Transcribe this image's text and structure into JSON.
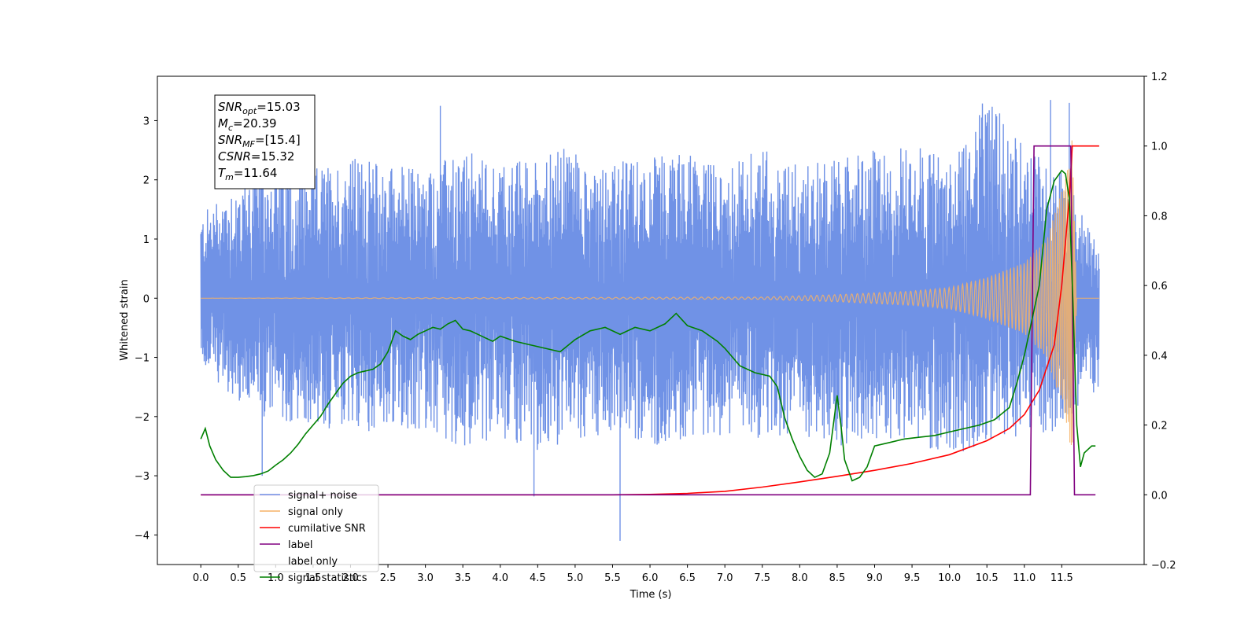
{
  "chart_data": {
    "type": "line",
    "xlabel": "Time (s)",
    "ylabel": "Whitened strain",
    "xlim": [
      -0.58,
      12.6
    ],
    "ylim_left": [
      -4.5,
      3.75
    ],
    "ylim_right": [
      -0.2,
      1.2
    ],
    "x_ticks": [
      "0.0",
      "0.5",
      "1.0",
      "1.5",
      "2.0",
      "2.5",
      "3.0",
      "3.5",
      "4.0",
      "4.5",
      "5.0",
      "5.5",
      "6.0",
      "6.5",
      "7.0",
      "7.5",
      "8.0",
      "8.5",
      "9.0",
      "9.5",
      "10.0",
      "10.5",
      "11.0",
      "11.5"
    ],
    "y_ticks_left": [
      "3",
      "2",
      "1",
      "0",
      "−1",
      "−2",
      "−3",
      "−4"
    ],
    "y_ticks_right": [
      "1.2",
      "1.0",
      "0.8",
      "0.6",
      "0.4",
      "0.2",
      "0.0",
      "−0.2"
    ],
    "grid": false,
    "legend_position": "lower-left",
    "annotation": [
      {
        "base": "SNR",
        "sub": "opt",
        "value": "=15.03"
      },
      {
        "base": "M",
        "sub": "c",
        "value": "=20.39"
      },
      {
        "base": "SNR",
        "sub": "MF",
        "value": "=[15.4]"
      },
      {
        "base": "CSNR",
        "sub": "",
        "value": "=15.32"
      },
      {
        "base": "T",
        "sub": "m",
        "value": "=11.64"
      }
    ],
    "series": [
      {
        "name": "signal+ noise",
        "axis": "left",
        "color": "#7092e6",
        "x_range": [
          0.0,
          12.0
        ],
        "envelope_upper": [
          1.4,
          2.1,
          2.3,
          2.2,
          2.4,
          2.3,
          2.2,
          2.5,
          2.3,
          2.4,
          2.6,
          2.3,
          2.4,
          2.5,
          2.2,
          2.6,
          2.3,
          2.4,
          2.5,
          2.6,
          2.5,
          3.4,
          2.6,
          2.2,
          0.9
        ],
        "envelope_lower": [
          -1.1,
          -1.8,
          -2.1,
          -2.2,
          -2.3,
          -2.2,
          -2.3,
          -2.5,
          -2.4,
          -2.6,
          -2.4,
          -2.3,
          -2.5,
          -2.4,
          -2.3,
          -2.4,
          -2.3,
          -2.5,
          -2.4,
          -2.5,
          -2.6,
          -2.6,
          -2.4,
          -2.2,
          -1.5
        ],
        "extreme_points": [
          [
            3.2,
            3.25
          ],
          [
            4.45,
            -3.35
          ],
          [
            5.6,
            -4.1
          ],
          [
            0.82,
            -3.0
          ],
          [
            11.35,
            3.35
          ],
          [
            11.6,
            3.3
          ]
        ]
      },
      {
        "name": "signal only",
        "axis": "left",
        "color": "#f5b266",
        "x_range": [
          0.0,
          12.0
        ],
        "envelope": [
          [
            7.5,
            0.02
          ],
          [
            8.5,
            0.06
          ],
          [
            9.5,
            0.12
          ],
          [
            10.0,
            0.18
          ],
          [
            10.5,
            0.35
          ],
          [
            11.0,
            0.6
          ],
          [
            11.3,
            1.0
          ],
          [
            11.55,
            2.0
          ],
          [
            11.64,
            2.7
          ],
          [
            11.7,
            0.0
          ]
        ]
      },
      {
        "name": "cumilative SNR",
        "axis": "right",
        "color": "#ff0000",
        "x": [
          0.0,
          5.5,
          6.0,
          6.5,
          7.0,
          7.5,
          8.0,
          8.5,
          9.0,
          9.5,
          10.0,
          10.5,
          10.8,
          11.0,
          11.2,
          11.4,
          11.5,
          11.6,
          11.64,
          12.0
        ],
        "y": [
          0.0,
          0.0,
          0.001,
          0.004,
          0.01,
          0.022,
          0.037,
          0.053,
          0.07,
          0.09,
          0.115,
          0.155,
          0.19,
          0.23,
          0.3,
          0.43,
          0.6,
          0.85,
          1.0,
          1.0
        ]
      },
      {
        "name": "label",
        "axis": "right",
        "color": "#800080",
        "x": [
          0.0,
          11.08,
          11.13,
          11.62,
          11.67,
          11.95
        ],
        "y": [
          0.0,
          0.0,
          1.0,
          1.0,
          0.0,
          0.0
        ]
      },
      {
        "name": "label only",
        "axis": "right",
        "color": "#ffffff",
        "hidden": true
      },
      {
        "name": "signal statistics",
        "axis": "right",
        "color": "#008000",
        "x": [
          0.0,
          0.06,
          0.12,
          0.2,
          0.3,
          0.4,
          0.5,
          0.6,
          0.7,
          0.8,
          0.9,
          1.0,
          1.1,
          1.2,
          1.3,
          1.4,
          1.5,
          1.6,
          1.7,
          1.8,
          1.9,
          2.0,
          2.1,
          2.2,
          2.3,
          2.4,
          2.5,
          2.6,
          2.7,
          2.8,
          2.9,
          3.0,
          3.1,
          3.2,
          3.3,
          3.4,
          3.5,
          3.6,
          3.7,
          3.8,
          3.9,
          4.0,
          4.2,
          4.4,
          4.6,
          4.8,
          5.0,
          5.2,
          5.4,
          5.6,
          5.8,
          6.0,
          6.2,
          6.35,
          6.5,
          6.7,
          6.9,
          7.0,
          7.2,
          7.4,
          7.6,
          7.7,
          7.8,
          7.9,
          8.0,
          8.1,
          8.2,
          8.3,
          8.4,
          8.5,
          8.55,
          8.6,
          8.7,
          8.8,
          8.9,
          9.0,
          9.2,
          9.4,
          9.6,
          9.8,
          10.0,
          10.2,
          10.4,
          10.6,
          10.8,
          10.9,
          11.0,
          11.1,
          11.2,
          11.3,
          11.4,
          11.5,
          11.55,
          11.6,
          11.65,
          11.7,
          11.75,
          11.8,
          11.9,
          11.95
        ],
        "y": [
          0.16,
          0.19,
          0.14,
          0.1,
          0.07,
          0.05,
          0.05,
          0.052,
          0.055,
          0.06,
          0.068,
          0.085,
          0.1,
          0.12,
          0.145,
          0.175,
          0.2,
          0.225,
          0.26,
          0.29,
          0.32,
          0.34,
          0.35,
          0.355,
          0.36,
          0.375,
          0.41,
          0.47,
          0.455,
          0.445,
          0.46,
          0.47,
          0.48,
          0.475,
          0.49,
          0.5,
          0.475,
          0.47,
          0.46,
          0.45,
          0.44,
          0.455,
          0.44,
          0.43,
          0.42,
          0.41,
          0.445,
          0.47,
          0.48,
          0.46,
          0.48,
          0.47,
          0.49,
          0.52,
          0.485,
          0.47,
          0.44,
          0.42,
          0.37,
          0.35,
          0.34,
          0.31,
          0.22,
          0.16,
          0.11,
          0.07,
          0.05,
          0.06,
          0.12,
          0.285,
          0.2,
          0.1,
          0.04,
          0.05,
          0.08,
          0.14,
          0.15,
          0.16,
          0.165,
          0.17,
          0.18,
          0.19,
          0.2,
          0.215,
          0.25,
          0.32,
          0.4,
          0.5,
          0.6,
          0.82,
          0.9,
          0.93,
          0.92,
          0.85,
          0.55,
          0.2,
          0.08,
          0.12,
          0.14,
          0.14
        ]
      }
    ]
  }
}
